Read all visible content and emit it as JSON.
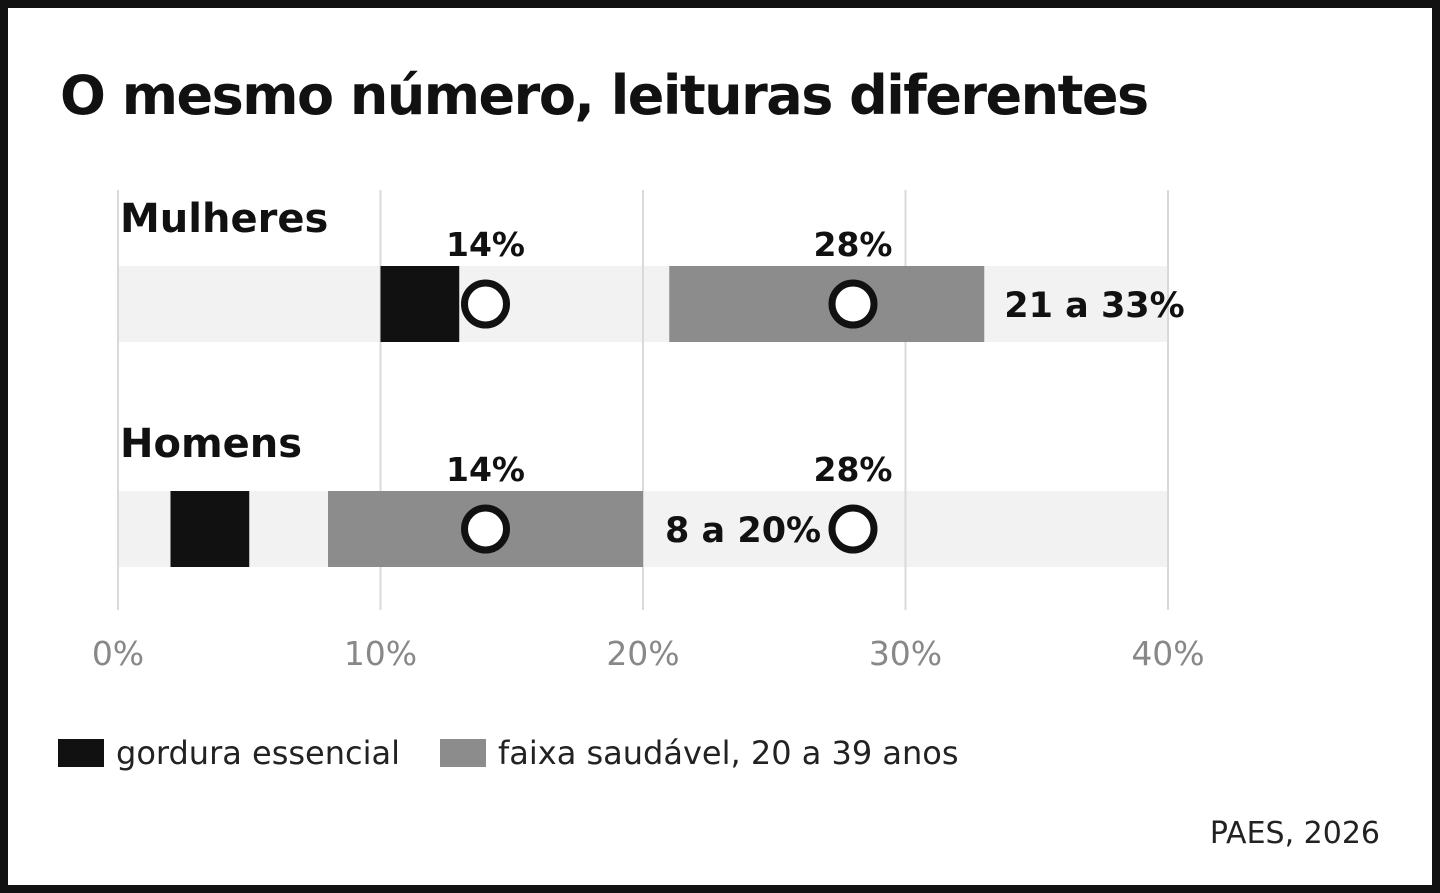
{
  "title": "O mesmo número, leituras diferentes",
  "source": "PAES, 2026",
  "legend": {
    "essential": "gordura essencial",
    "healthy": "faixa saudável, 20 a 39 anos"
  },
  "colors": {
    "essential": "#111111",
    "healthy": "#8c8c8c",
    "track": "#f2f2f2",
    "grid": "#d9d9d9",
    "tick": "#888888",
    "text": "#111111"
  },
  "chart_data": {
    "type": "bar",
    "orientation": "horizontal",
    "title": "O mesmo número, leituras diferentes",
    "xlim": [
      0,
      40
    ],
    "x_ticks": [
      0,
      10,
      20,
      30,
      40
    ],
    "x_tick_labels": [
      "0%",
      "10%",
      "20%",
      "30%",
      "40%"
    ],
    "grid": true,
    "legend_position": "bottom-left",
    "rows": [
      {
        "name": "Mulheres",
        "essential": [
          10,
          13
        ],
        "healthy": [
          21,
          33
        ],
        "healthy_label": "21 a 33%",
        "markers": [
          {
            "value": 14,
            "label": "14%"
          },
          {
            "value": 28,
            "label": "28%"
          }
        ]
      },
      {
        "name": "Homens",
        "essential": [
          2,
          5
        ],
        "healthy": [
          8,
          20
        ],
        "healthy_label": "8 a 20%",
        "markers": [
          {
            "value": 14,
            "label": "14%"
          },
          {
            "value": 28,
            "label": "28%"
          }
        ]
      }
    ]
  }
}
